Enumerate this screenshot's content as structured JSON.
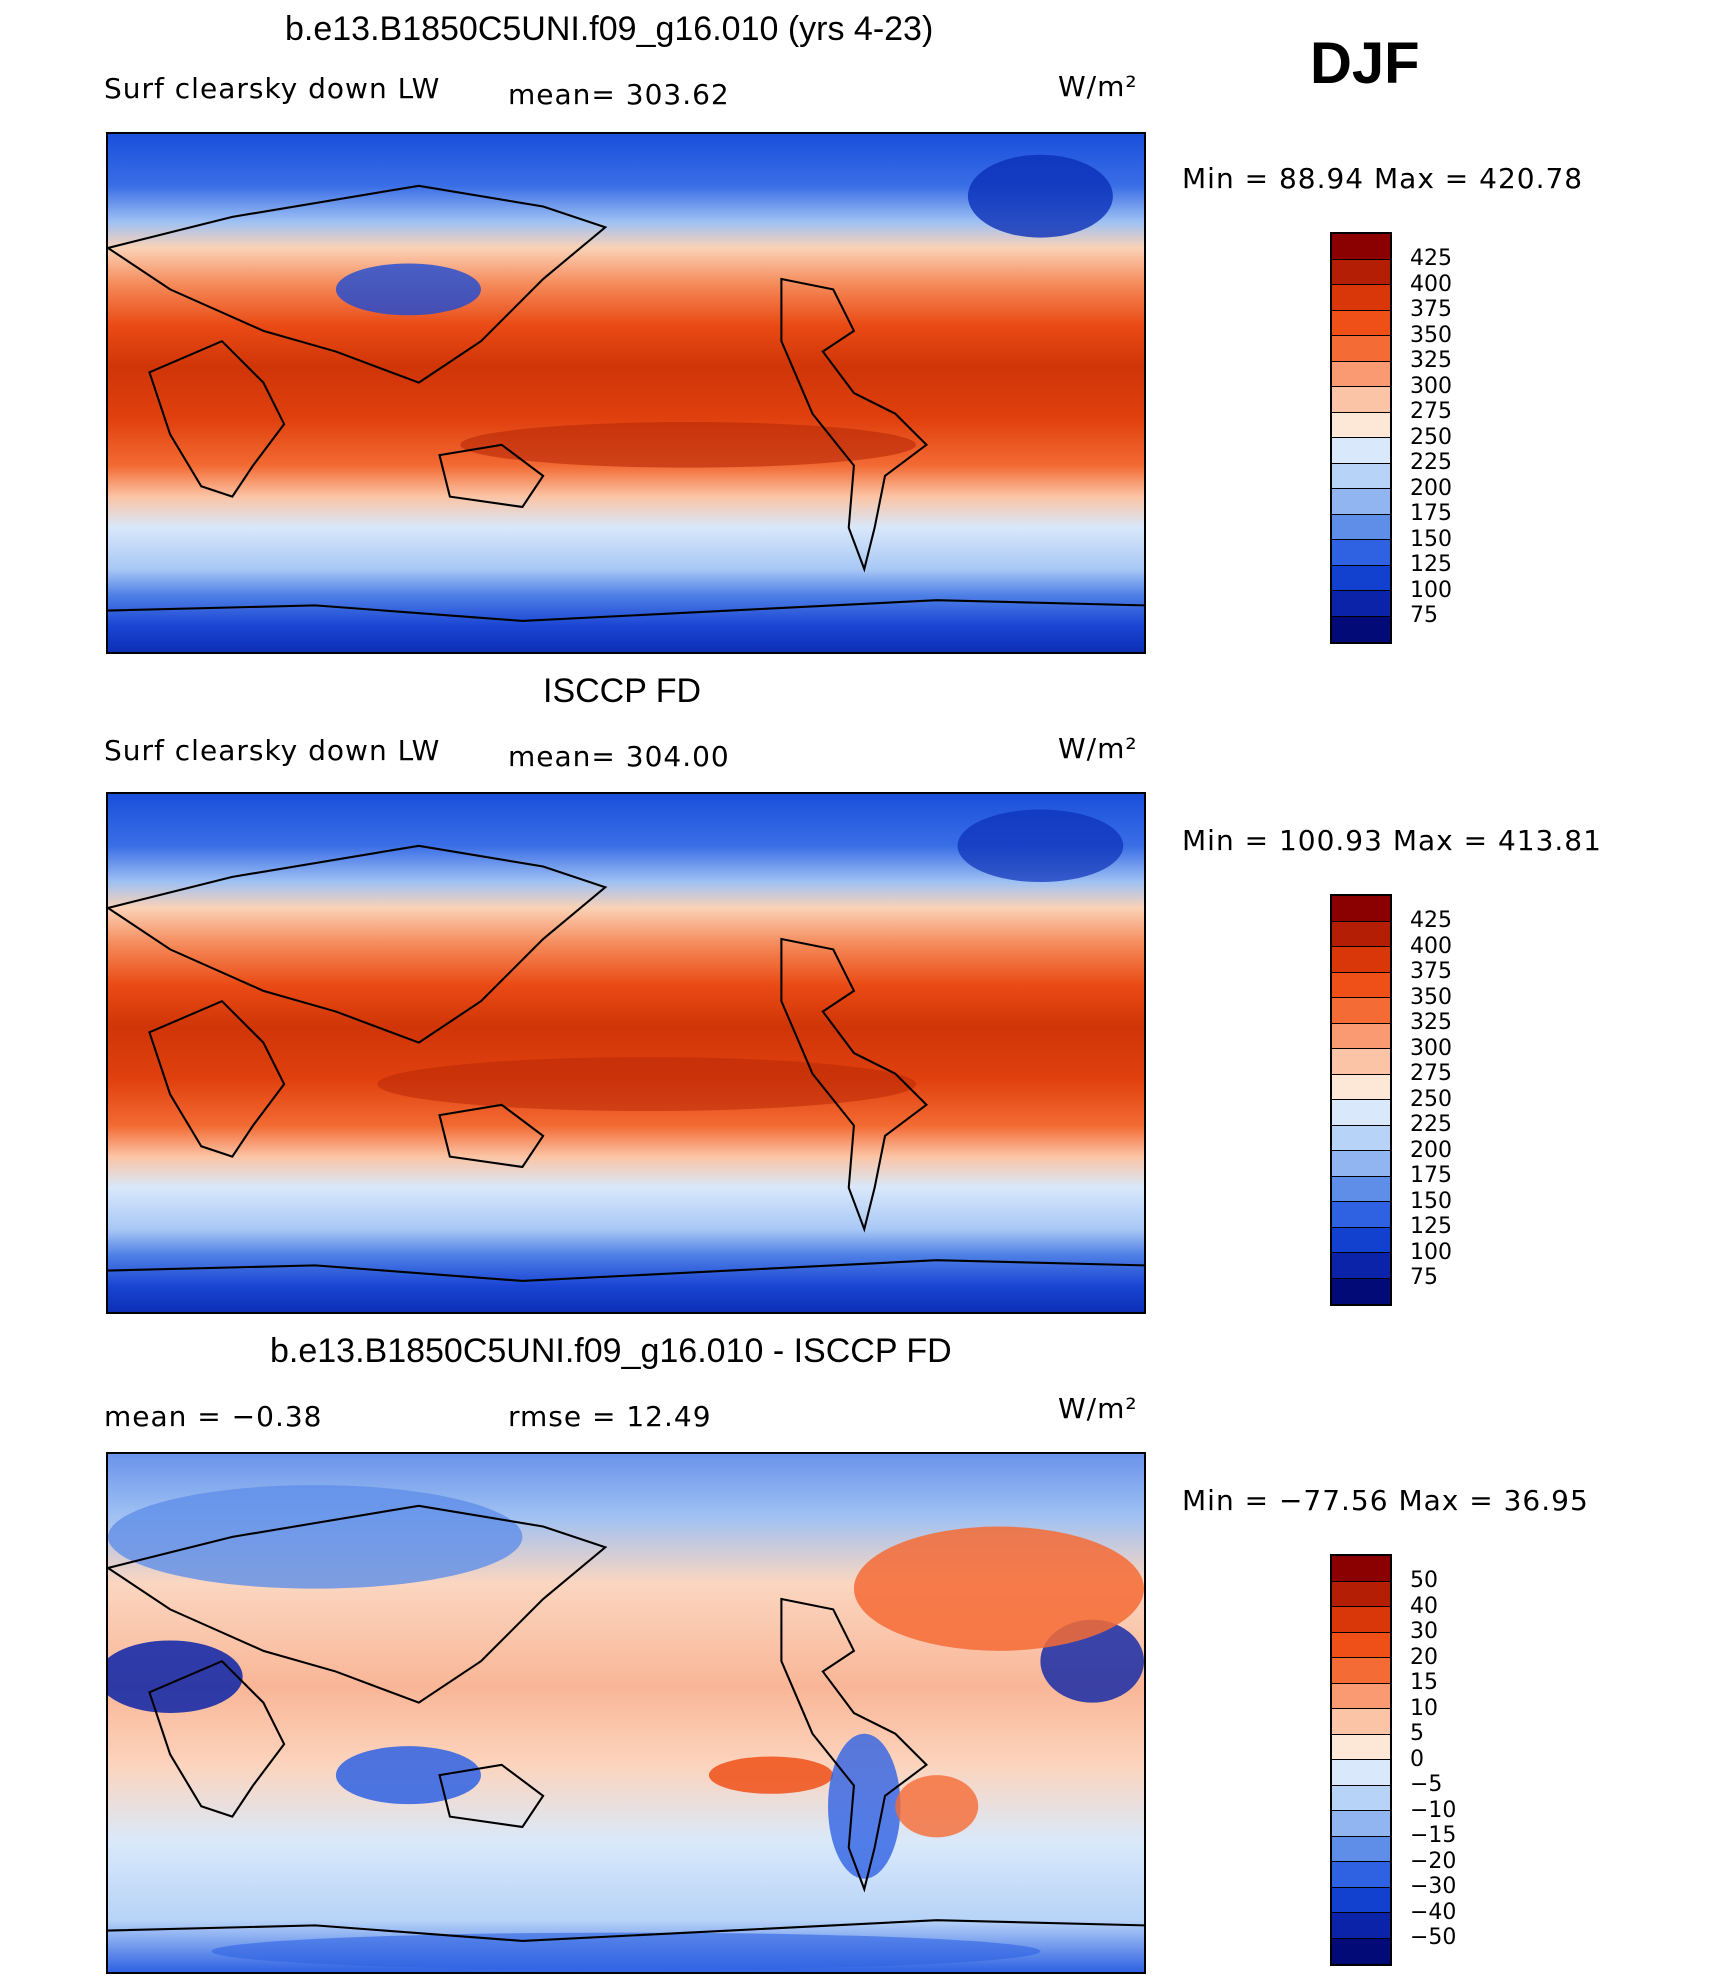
{
  "season": "DJF",
  "units": "W/m²",
  "panels": [
    {
      "title": "b.e13.B1850C5UNI.f09_g16.010 (yrs 4-23)",
      "left_label": "Surf clearsky down LW",
      "stat_label": "mean= 303.62",
      "minmax": "Min =  88.94 Max = 420.78",
      "kind": "absolute"
    },
    {
      "title": "ISCCP FD",
      "left_label": "Surf clearsky down LW",
      "stat_label": "mean= 304.00",
      "minmax": "Min = 100.93 Max = 413.81",
      "kind": "absolute"
    },
    {
      "title": "b.e13.B1850C5UNI.f09_g16.010 - ISCCP FD",
      "left_label": "mean =   −0.38",
      "stat_label": "rmse =   12.49",
      "minmax": "Min = −77.56 Max =   36.95",
      "kind": "difference"
    }
  ],
  "colorbars": {
    "absolute": {
      "labels": [
        "425",
        "400",
        "375",
        "350",
        "325",
        "300",
        "275",
        "250",
        "225",
        "200",
        "175",
        "150",
        "125",
        "100",
        "75"
      ],
      "colors": [
        "#8b0000",
        "#b31e05",
        "#d9360a",
        "#ee5017",
        "#f56b35",
        "#f99a72",
        "#fcc4a6",
        "#fde8d8",
        "#d9e9fb",
        "#b7d3f7",
        "#90b5f0",
        "#5f8ee9",
        "#2f62e3",
        "#1240cf",
        "#0a23a8",
        "#020a78"
      ]
    },
    "difference": {
      "labels": [
        "50",
        "40",
        "30",
        "20",
        "15",
        "10",
        "5",
        "0",
        "−5",
        "−10",
        "−15",
        "−20",
        "−30",
        "−40",
        "−50"
      ],
      "colors": [
        "#8b0000",
        "#b31e05",
        "#d9360a",
        "#ee5017",
        "#f56b35",
        "#f99a72",
        "#fcc4a6",
        "#fde8d8",
        "#d9e9fb",
        "#b7d3f7",
        "#90b5f0",
        "#5f8ee9",
        "#2f62e3",
        "#1240cf",
        "#0a23a8",
        "#020a78"
      ]
    }
  }
}
